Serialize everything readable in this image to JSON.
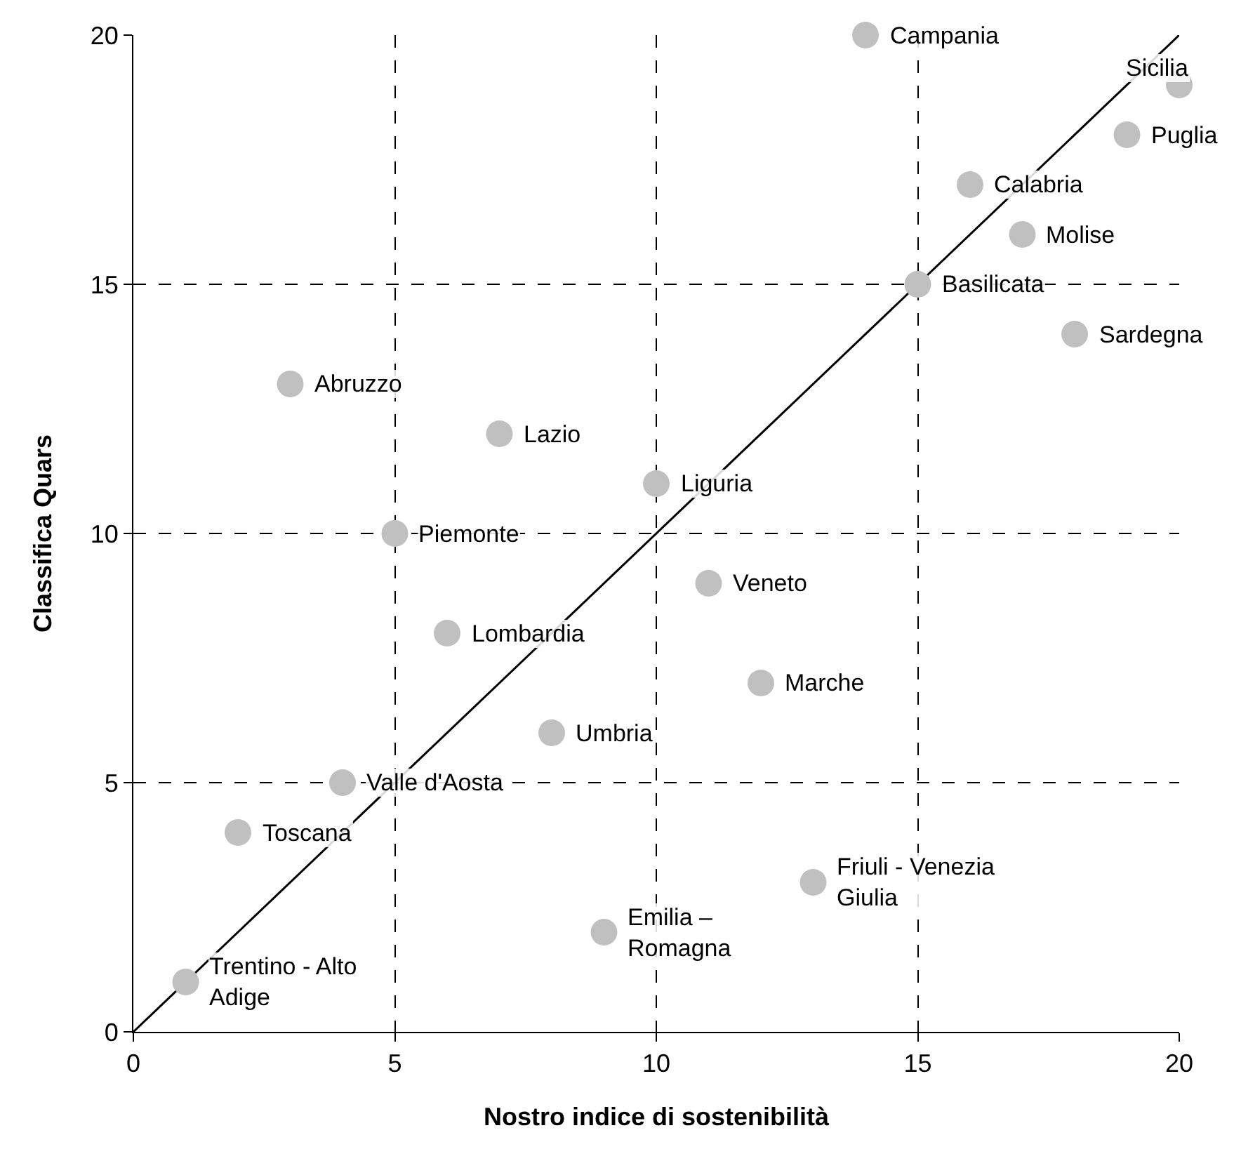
{
  "chart_data": {
    "type": "scatter",
    "xlabel": "Nostro indice di sostenibilità",
    "ylabel": "Classifica Quars",
    "xlim": [
      0,
      20
    ],
    "ylim": [
      0,
      20
    ],
    "xticks": [
      0,
      5,
      10,
      15,
      20
    ],
    "yticks": [
      0,
      5,
      10,
      15,
      20
    ],
    "grid": true,
    "marker": "circle",
    "series": [
      {
        "type": "line",
        "color": "#000000",
        "x": [
          0,
          20
        ],
        "values": [
          0,
          20
        ],
        "marker": "none",
        "line_style": "solid"
      },
      {
        "type": "scatter",
        "color": "#c0c0c0",
        "x": [
          14,
          20,
          19,
          16,
          17,
          15,
          18,
          3,
          7,
          10,
          5,
          11,
          6,
          12,
          8,
          4,
          2,
          13,
          9,
          1
        ],
        "values": [
          20,
          19,
          18,
          17,
          16,
          15,
          14,
          13,
          12,
          11,
          10,
          9,
          8,
          7,
          6,
          5,
          4,
          3,
          2,
          1
        ]
      }
    ],
    "annotations": [
      {
        "text": "Campania",
        "x": 14,
        "y": 20
      },
      {
        "text": "Sicilia",
        "x": 20,
        "y": 19
      },
      {
        "text": "Puglia",
        "x": 19,
        "y": 18
      },
      {
        "text": "Calabria",
        "x": 16,
        "y": 17
      },
      {
        "text": "Molise",
        "x": 17,
        "y": 16
      },
      {
        "text": "Basilicata",
        "x": 15,
        "y": 15
      },
      {
        "text": "Sardegna",
        "x": 18,
        "y": 14
      },
      {
        "text": "Abruzzo",
        "x": 3,
        "y": 13
      },
      {
        "text": "Lazio",
        "x": 7,
        "y": 12
      },
      {
        "text": "Liguria",
        "x": 10,
        "y": 11
      },
      {
        "text": "Piemonte",
        "x": 5,
        "y": 10
      },
      {
        "text": "Veneto",
        "x": 11,
        "y": 9
      },
      {
        "text": "Lombardia",
        "x": 6,
        "y": 8
      },
      {
        "text": "Marche",
        "x": 12,
        "y": 7
      },
      {
        "text": "Umbria",
        "x": 8,
        "y": 6
      },
      {
        "text": "Valle d'Aosta",
        "x": 4,
        "y": 5
      },
      {
        "text": "Toscana",
        "x": 2,
        "y": 4
      },
      {
        "text": "Friuli - Venezia\nGiulia",
        "x": 13,
        "y": 3
      },
      {
        "text": "Emilia –\nRomagna",
        "x": 9,
        "y": 2
      },
      {
        "text": "Trentino - Alto\nAdige",
        "x": 1,
        "y": 1
      }
    ]
  }
}
